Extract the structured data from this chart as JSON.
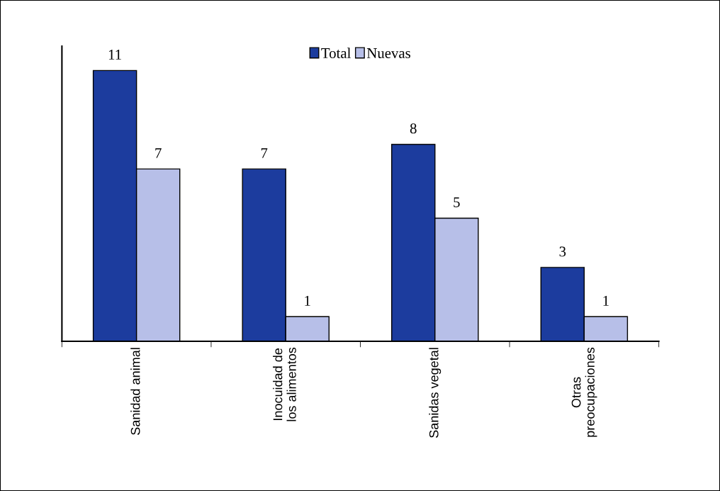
{
  "chart_data": {
    "type": "bar",
    "categories": [
      "Sanidad animal",
      "Inocuidad de\nlos alimentos",
      "Sanidas vegetal",
      "Otras\npreocupaciones"
    ],
    "series": [
      {
        "name": "Total",
        "color": "#1c3c9e",
        "values": [
          11,
          7,
          8,
          3
        ]
      },
      {
        "name": "Nuevas",
        "color": "#b7bfe8",
        "values": [
          7,
          1,
          5,
          1
        ]
      }
    ],
    "data_labels": true,
    "legend": "top",
    "grid": false,
    "tick_labels": "x"
  }
}
